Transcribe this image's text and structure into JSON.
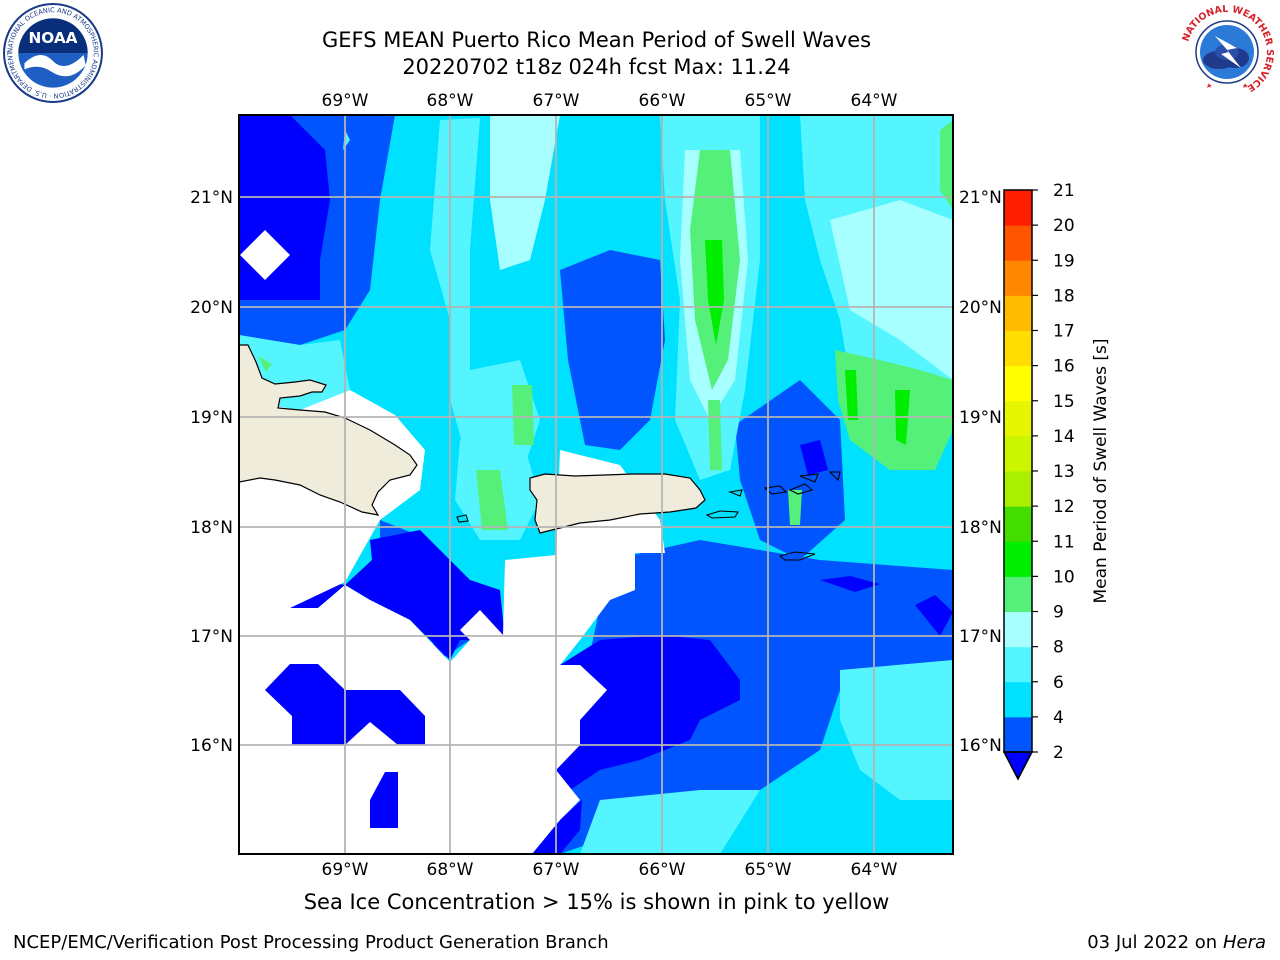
{
  "header": {
    "title_line1": "GEFS MEAN Puerto Rico Mean Period of Swell Waves",
    "title_line2": "20220702 t18z 024h fcst   Max: 11.24"
  },
  "logos": {
    "left": "NOAA",
    "left_ring_text": "NATIONAL OCEANIC AND ATMOSPHERIC ADMINISTRATION · U.S. DEPARTMENT OF COMMERCE",
    "right_ring_text": "NATIONAL WEATHER SERVICE"
  },
  "map": {
    "lon_labels": [
      "69°W",
      "68°W",
      "67°W",
      "66°W",
      "65°W",
      "64°W"
    ],
    "lat_labels": [
      "21°N",
      "20°N",
      "19°N",
      "18°N",
      "17°N",
      "16°N"
    ],
    "land_color": "#efecdc",
    "grid_color": "#b4b4b4"
  },
  "colorbar": {
    "label": "Mean Period of Swell Waves [s]",
    "ticks": [
      "2",
      "4",
      "6",
      "8",
      "9",
      "10",
      "11",
      "12",
      "13",
      "14",
      "15",
      "16",
      "17",
      "18",
      "19",
      "20",
      "21"
    ],
    "colors": [
      "#0055ff",
      "#00e0ff",
      "#55f5ff",
      "#a8ffff",
      "#55f07a",
      "#00ee00",
      "#44dd00",
      "#aaee00",
      "#ccf500",
      "#e6f500",
      "#ffff00",
      "#ffdd00",
      "#ffbb00",
      "#ff8800",
      "#ff5500",
      "#ff1e00"
    ],
    "under_color": "#0000ff"
  },
  "footer": {
    "note": "Sea Ice Concentration > 15% is shown in pink to yellow",
    "credit": "NCEP/EMC/Verification Post Processing Product Generation Branch",
    "date": "03 Jul 2022 on",
    "system": "Hera"
  }
}
